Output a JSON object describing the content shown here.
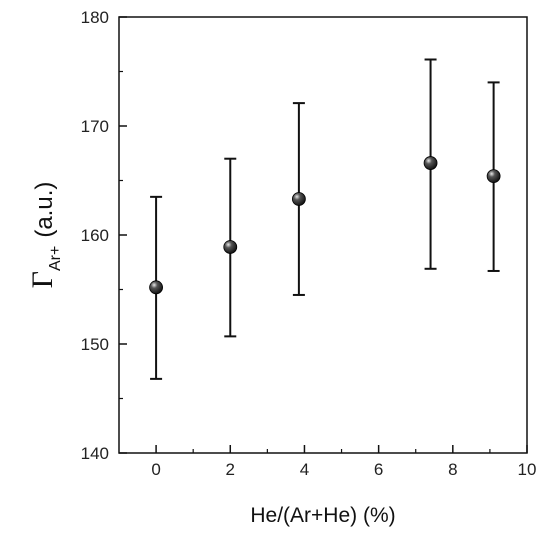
{
  "chart_data": {
    "type": "scatter",
    "title": "",
    "xlabel": "He/(Ar+He) (%)",
    "ylabel": {
      "symbol": "Γ",
      "subscript": "Ar+",
      "unit": "(a.u.)"
    },
    "xlim": [
      -1,
      10
    ],
    "ylim": [
      140,
      180
    ],
    "x_ticks": [
      0,
      2,
      4,
      6,
      8,
      10
    ],
    "x_tick_labels": [
      "0",
      "2",
      "4",
      "6",
      "8",
      "10"
    ],
    "y_ticks": [
      140,
      150,
      160,
      170,
      180
    ],
    "y_tick_labels": [
      "140",
      "150",
      "160",
      "170",
      "180"
    ],
    "grid": false,
    "marker_color": "#111111",
    "series": [
      {
        "x": [
          0,
          2,
          3.85,
          7.4,
          9.1
        ],
        "y": [
          155.2,
          158.9,
          163.3,
          166.6,
          165.4
        ],
        "y_err_low": [
          146.8,
          150.7,
          154.5,
          156.9,
          156.7
        ],
        "y_err_high": [
          163.5,
          167.0,
          172.1,
          176.1,
          174.0
        ]
      }
    ]
  }
}
